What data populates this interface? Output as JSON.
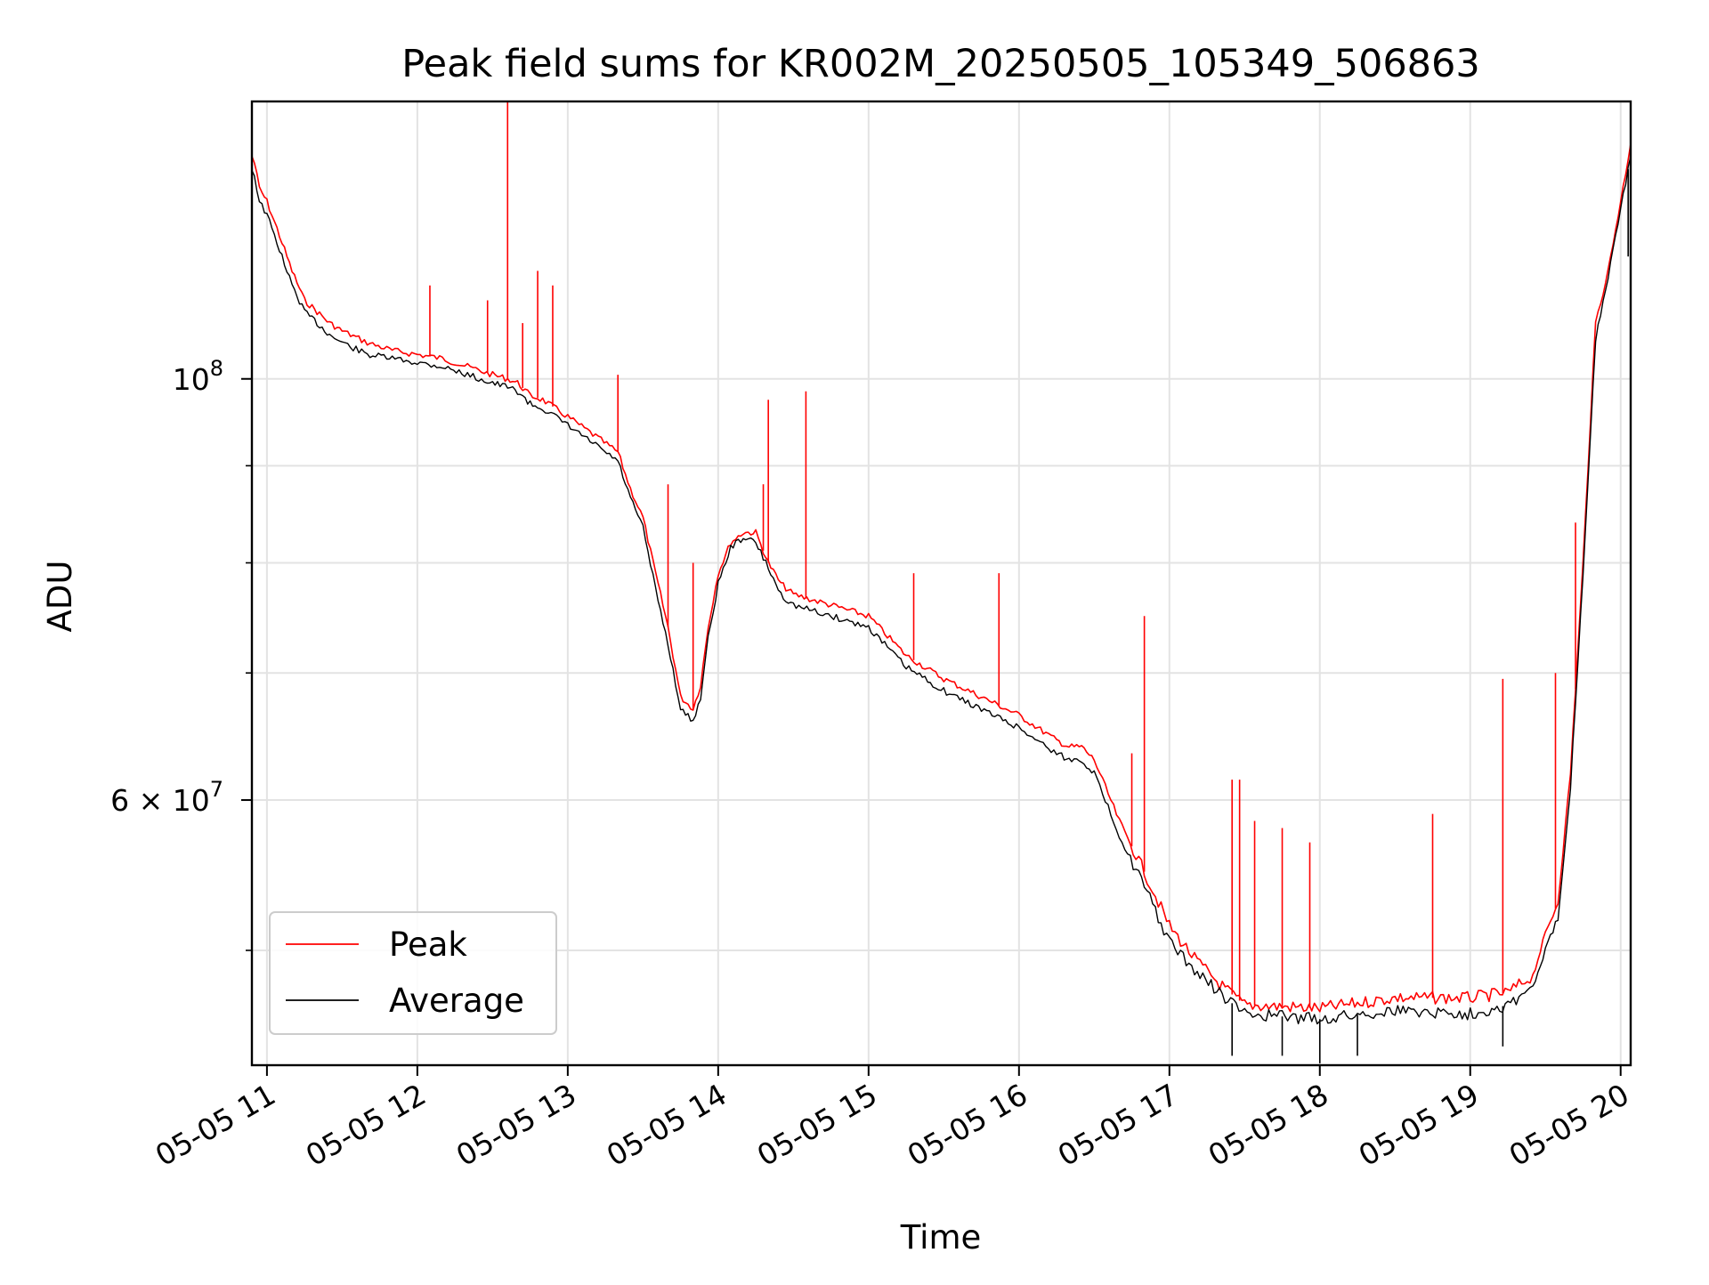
{
  "chart_data": {
    "type": "line",
    "title": "Peak field sums for KR002M_20250505_105349_506863",
    "xlabel": "Time",
    "ylabel": "ADU",
    "y_scale": "log",
    "ylim": [
      43500000,
      140000000
    ],
    "xlim": [
      "2025-05-05 10:54",
      "2025-05-05 20:04"
    ],
    "x_ticks": [
      "2025-05-05 11:00",
      "2025-05-05 12:00",
      "2025-05-05 13:00",
      "2025-05-05 14:00",
      "2025-05-05 15:00",
      "2025-05-05 16:00",
      "2025-05-05 17:00",
      "2025-05-05 18:00",
      "2025-05-05 19:00",
      "2025-05-05 20:00"
    ],
    "x_tick_labels": [
      "05-05 11",
      "05-05 12",
      "05-05 13",
      "05-05 14",
      "05-05 15",
      "05-05 16",
      "05-05 17",
      "05-05 18",
      "05-05 19",
      "05-05 20"
    ],
    "y_ticks": [
      100000000,
      60000000
    ],
    "y_tick_labels": [
      {
        "base": "10",
        "exp": "8"
      },
      {
        "base": "6 × 10",
        "exp": "7"
      }
    ],
    "y_minor_ticks": [
      50000000,
      70000000,
      80000000,
      90000000
    ],
    "grid": true,
    "legend": {
      "position": "lower-left",
      "entries": [
        "Peak",
        "Average"
      ]
    },
    "series": [
      {
        "name": "Peak",
        "color": "#ff0000",
        "x": [
          "2025-05-05 10:54",
          "2025-05-05 10:55",
          "2025-05-05 10:57",
          "2025-05-05 11:00",
          "2025-05-05 11:05",
          "2025-05-05 11:10",
          "2025-05-05 11:15",
          "2025-05-05 11:20",
          "2025-05-05 11:25",
          "2025-05-05 11:30",
          "2025-05-05 11:40",
          "2025-05-05 11:50",
          "2025-05-05 12:00",
          "2025-05-05 12:10",
          "2025-05-05 12:20",
          "2025-05-05 12:30",
          "2025-05-05 12:36",
          "2025-05-05 12:40",
          "2025-05-05 12:45",
          "2025-05-05 12:50",
          "2025-05-05 13:00",
          "2025-05-05 13:10",
          "2025-05-05 13:20",
          "2025-05-05 13:25",
          "2025-05-05 13:30",
          "2025-05-05 13:35",
          "2025-05-05 13:40",
          "2025-05-05 13:45",
          "2025-05-05 13:50",
          "2025-05-05 13:53",
          "2025-05-05 13:56",
          "2025-05-05 14:00",
          "2025-05-05 14:05",
          "2025-05-05 14:10",
          "2025-05-05 14:15",
          "2025-05-05 14:20",
          "2025-05-05 14:25",
          "2025-05-05 14:30",
          "2025-05-05 14:45",
          "2025-05-05 15:00",
          "2025-05-05 15:15",
          "2025-05-05 15:30",
          "2025-05-05 15:45",
          "2025-05-05 16:00",
          "2025-05-05 16:15",
          "2025-05-05 16:20",
          "2025-05-05 16:25",
          "2025-05-05 16:30",
          "2025-05-05 16:40",
          "2025-05-05 16:50",
          "2025-05-05 17:00",
          "2025-05-05 17:10",
          "2025-05-05 17:20",
          "2025-05-05 17:30",
          "2025-05-05 18:00",
          "2025-05-05 18:30",
          "2025-05-05 19:00",
          "2025-05-05 19:15",
          "2025-05-05 19:25",
          "2025-05-05 19:30",
          "2025-05-05 19:35",
          "2025-05-05 19:40",
          "2025-05-05 19:45",
          "2025-05-05 19:50",
          "2025-05-05 19:55",
          "2025-05-05 20:00",
          "2025-05-05 20:04"
        ],
        "y": [
          131000000,
          130000000,
          126000000,
          124000000,
          119000000,
          114000000,
          110000000,
          108500000,
          107000000,
          106000000,
          104500000,
          103500000,
          103000000,
          102500000,
          101500000,
          100500000,
          100000000,
          99500000,
          98000000,
          97500000,
          95500000,
          93500000,
          91500000,
          87500000,
          84500000,
          79000000,
          74000000,
          68000000,
          67000000,
          69000000,
          74000000,
          79000000,
          82000000,
          83000000,
          83000000,
          80000000,
          78000000,
          77000000,
          76000000,
          75000000,
          71500000,
          69500000,
          68000000,
          66500000,
          64500000,
          64000000,
          64000000,
          63000000,
          58500000,
          55000000,
          51500000,
          49500000,
          48000000,
          46800000,
          46600000,
          47200000,
          47200000,
          47500000,
          48500000,
          51000000,
          53000000,
          62000000,
          80000000,
          107000000,
          114000000,
          124000000,
          133000000
        ],
        "spikes": [
          {
            "x": "2025-05-05 12:36",
            "y": 140000000
          },
          {
            "x": "2025-05-05 12:48",
            "y": 114000000
          },
          {
            "x": "2025-05-05 12:54",
            "y": 112000000
          },
          {
            "x": "2025-05-05 12:28",
            "y": 110000000
          },
          {
            "x": "2025-05-05 12:05",
            "y": 112000000
          },
          {
            "x": "2025-05-05 12:42",
            "y": 107000000
          },
          {
            "x": "2025-05-05 13:20",
            "y": 100500000
          },
          {
            "x": "2025-05-05 13:40",
            "y": 88000000
          },
          {
            "x": "2025-05-05 13:50",
            "y": 80000000
          },
          {
            "x": "2025-05-05 14:18",
            "y": 88000000
          },
          {
            "x": "2025-05-05 14:20",
            "y": 97500000
          },
          {
            "x": "2025-05-05 14:35",
            "y": 98500000
          },
          {
            "x": "2025-05-05 15:18",
            "y": 79000000
          },
          {
            "x": "2025-05-05 15:52",
            "y": 79000000
          },
          {
            "x": "2025-05-05 16:50",
            "y": 75000000
          },
          {
            "x": "2025-05-05 16:45",
            "y": 63500000
          },
          {
            "x": "2025-05-05 17:25",
            "y": 61500000
          },
          {
            "x": "2025-05-05 17:28",
            "y": 61500000
          },
          {
            "x": "2025-05-05 17:34",
            "y": 58500000
          },
          {
            "x": "2025-05-05 17:45",
            "y": 58000000
          },
          {
            "x": "2025-05-05 17:56",
            "y": 57000000
          },
          {
            "x": "2025-05-05 18:45",
            "y": 59000000
          },
          {
            "x": "2025-05-05 19:13",
            "y": 69500000
          },
          {
            "x": "2025-05-05 19:34",
            "y": 70000000
          },
          {
            "x": "2025-05-05 19:42",
            "y": 84000000
          }
        ]
      },
      {
        "name": "Average",
        "color": "#000000",
        "x": [
          "2025-05-05 10:54",
          "2025-05-05 10:55",
          "2025-05-05 10:57",
          "2025-05-05 11:00",
          "2025-05-05 11:05",
          "2025-05-05 11:10",
          "2025-05-05 11:15",
          "2025-05-05 11:20",
          "2025-05-05 11:25",
          "2025-05-05 11:30",
          "2025-05-05 11:40",
          "2025-05-05 11:50",
          "2025-05-05 12:00",
          "2025-05-05 12:10",
          "2025-05-05 12:20",
          "2025-05-05 12:30",
          "2025-05-05 12:36",
          "2025-05-05 12:40",
          "2025-05-05 12:45",
          "2025-05-05 12:50",
          "2025-05-05 13:00",
          "2025-05-05 13:10",
          "2025-05-05 13:20",
          "2025-05-05 13:25",
          "2025-05-05 13:30",
          "2025-05-05 13:35",
          "2025-05-05 13:40",
          "2025-05-05 13:45",
          "2025-05-05 13:50",
          "2025-05-05 13:53",
          "2025-05-05 13:56",
          "2025-05-05 14:00",
          "2025-05-05 14:05",
          "2025-05-05 14:10",
          "2025-05-05 14:15",
          "2025-05-05 14:20",
          "2025-05-05 14:25",
          "2025-05-05 14:30",
          "2025-05-05 14:45",
          "2025-05-05 15:00",
          "2025-05-05 15:15",
          "2025-05-05 15:30",
          "2025-05-05 15:45",
          "2025-05-05 16:00",
          "2025-05-05 16:15",
          "2025-05-05 16:20",
          "2025-05-05 16:25",
          "2025-05-05 16:30",
          "2025-05-05 16:40",
          "2025-05-05 16:50",
          "2025-05-05 17:00",
          "2025-05-05 17:10",
          "2025-05-05 17:20",
          "2025-05-05 17:30",
          "2025-05-05 18:00",
          "2025-05-05 18:30",
          "2025-05-05 19:00",
          "2025-05-05 19:15",
          "2025-05-05 19:25",
          "2025-05-05 19:30",
          "2025-05-05 19:35",
          "2025-05-05 19:40",
          "2025-05-05 19:45",
          "2025-05-05 19:50",
          "2025-05-05 19:55",
          "2025-05-05 20:00",
          "2025-05-05 20:04"
        ],
        "y": [
          129000000,
          128000000,
          124000000,
          122000000,
          117000000,
          112000000,
          108500000,
          107000000,
          105500000,
          104500000,
          103000000,
          102500000,
          102000000,
          101500000,
          100500000,
          99500000,
          99000000,
          98500000,
          97000000,
          96500000,
          94500000,
          92500000,
          90500000,
          86500000,
          83500000,
          77500000,
          72500000,
          67000000,
          66000000,
          68000000,
          73000000,
          78000000,
          81500000,
          82500000,
          82000000,
          79500000,
          77000000,
          76000000,
          75000000,
          74000000,
          70500000,
          68500000,
          67000000,
          65500000,
          63500000,
          63000000,
          63000000,
          62000000,
          57500000,
          54000000,
          50500000,
          48800000,
          47500000,
          46300000,
          46000000,
          46500000,
          46300000,
          46800000,
          47800000,
          50000000,
          52000000,
          61000000,
          79000000,
          105000000,
          113000000,
          123000000,
          131000000
        ],
        "dips": [
          {
            "x": "2025-05-05 17:25",
            "y": 44000000
          },
          {
            "x": "2025-05-05 17:45",
            "y": 44000000
          },
          {
            "x": "2025-05-05 18:00",
            "y": 43600000
          },
          {
            "x": "2025-05-05 18:15",
            "y": 44000000
          },
          {
            "x": "2025-05-05 19:13",
            "y": 44500000
          },
          {
            "x": "2025-05-05 20:03",
            "y": 116000000
          }
        ]
      }
    ]
  }
}
